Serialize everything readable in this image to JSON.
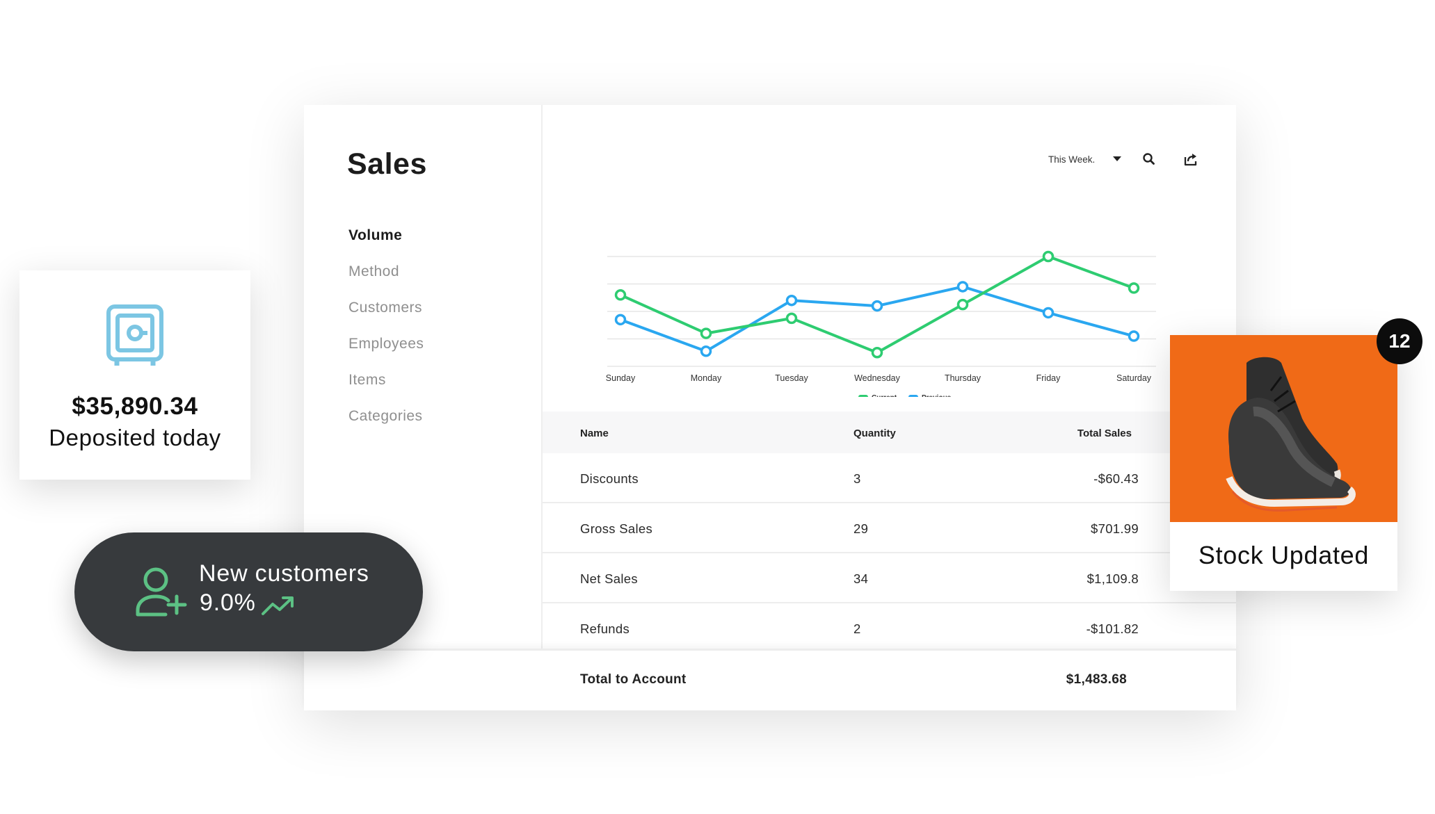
{
  "sales": {
    "title": "Sales",
    "nav": [
      "Volume",
      "Method",
      "Customers",
      "Employees",
      "Items",
      "Categories"
    ],
    "active_nav": "Volume"
  },
  "controls": {
    "period": "This Week.",
    "search_icon": "search-icon",
    "export_icon": "export-icon"
  },
  "chart_data": {
    "type": "line",
    "categories": [
      "Sunday",
      "Monday",
      "Tuesday",
      "Wednesday",
      "Thursday",
      "Friday",
      "Saturday"
    ],
    "series": [
      {
        "name": "Current",
        "color": "#2ecc71",
        "values": [
          2.6,
          1.2,
          1.75,
          0.5,
          2.25,
          4.0,
          2.85
        ]
      },
      {
        "name": "Previous",
        "color": "#2aa7f0",
        "values": [
          1.7,
          0.55,
          2.4,
          2.2,
          2.9,
          1.95,
          1.1
        ]
      }
    ],
    "ylim": [
      0,
      4.0
    ],
    "grid": true,
    "legend": "bottom-center"
  },
  "table": {
    "headers": {
      "name": "Name",
      "quantity": "Quantity",
      "total": "Total Sales"
    },
    "rows": [
      {
        "name": "Discounts",
        "quantity": "3",
        "total": "-$60.43"
      },
      {
        "name": "Gross Sales",
        "quantity": "29",
        "total": "$701.99"
      },
      {
        "name": "Net Sales",
        "quantity": "34",
        "total": "$1,109.8"
      },
      {
        "name": "Refunds",
        "quantity": "2",
        "total": "-$101.82"
      }
    ],
    "footer": {
      "label": "Total to Account",
      "total": "$1,483.68"
    }
  },
  "deposit": {
    "icon": "safe-icon",
    "amount": "$35,890.34",
    "label": "Deposited today",
    "icon_color": "#7cc6e3"
  },
  "customers": {
    "icon": "add-user-icon",
    "label": "New customers",
    "value": "9.0%",
    "trend_icon": "trending-up-icon",
    "accent": "#5cc184"
  },
  "stock": {
    "label": "Stock Updated",
    "badge": "12",
    "image": "sneaker-image",
    "background": "#f06a17"
  }
}
